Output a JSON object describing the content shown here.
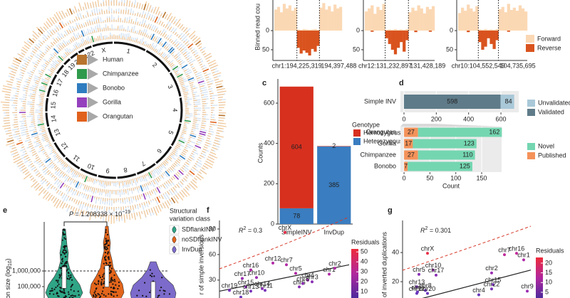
{
  "chart_data": [
    {
      "type": "circos",
      "legend": [
        "Human",
        "Chimpanzee",
        "Bonobo",
        "Gorilla",
        "Orangutan"
      ],
      "colors": [
        "#b8752f",
        "#2f9a4c",
        "#2e7cbf",
        "#9540bd",
        "#e0611c"
      ],
      "chromosomes": [
        "1",
        "2",
        "3",
        "4",
        "5",
        "6",
        "7",
        "8",
        "9",
        "10",
        "11",
        "12",
        "13",
        "14",
        "15",
        "16",
        "17",
        "18",
        "19",
        "20",
        "21",
        "22",
        "X"
      ]
    },
    {
      "type": "bar",
      "ylabel": "Binned read cou",
      "ylim": [
        -78,
        80
      ],
      "yticks": [
        0,
        {
          "value": -50,
          "label": "50"
        }
      ],
      "legend": [
        "Forward",
        "Reverse"
      ],
      "colors": [
        "#fbd8b4",
        "#d9531e"
      ],
      "panels": [
        {
          "start": "chr1:194,225,319",
          "end": "194,397,488",
          "forward": [
            55,
            62,
            48,
            70,
            58,
            66,
            52,
            60,
            3,
            2,
            4,
            3,
            2,
            3,
            4,
            2,
            60,
            72,
            55,
            64,
            50,
            68,
            58,
            62
          ],
          "reverse": [
            0,
            0,
            0,
            0,
            0,
            0,
            0,
            0,
            -45,
            -60,
            -52,
            -58,
            -65,
            -48,
            -55,
            -40,
            0,
            0,
            0,
            0,
            0,
            0,
            0,
            0
          ]
        },
        {
          "start": "chr12:131,232,897",
          "end": "131,428,189",
          "forward": [
            50,
            58,
            66,
            44,
            62,
            54,
            70,
            2,
            3,
            2,
            4,
            2,
            3,
            2,
            4,
            48,
            60,
            52,
            66,
            58,
            45,
            62,
            56,
            64
          ],
          "reverse": [
            0,
            0,
            -3,
            0,
            0,
            0,
            0,
            -20,
            -35,
            -50,
            -62,
            -45,
            -30,
            -55,
            -25,
            0,
            0,
            -4,
            0,
            0,
            0,
            0,
            -3,
            0
          ]
        },
        {
          "start": "chr10:104,552,549",
          "end": "104,735,695",
          "forward": [
            46,
            60,
            52,
            68,
            58,
            50,
            64,
            3,
            2,
            4,
            2,
            3,
            2,
            4,
            56,
            62,
            48,
            70,
            54,
            60,
            52,
            66,
            58,
            50
          ],
          "reverse": [
            0,
            0,
            0,
            -4,
            0,
            0,
            0,
            -30,
            -50,
            -42,
            -20,
            -35,
            -48,
            -25,
            0,
            0,
            0,
            -3,
            0,
            0,
            0,
            0,
            0,
            0
          ]
        }
      ]
    },
    {
      "type": "stacked_bar",
      "panel": "c",
      "ylabel": "Counts",
      "legend_title": "Genotype",
      "categories": [
        "SimpleINV",
        "InvDup"
      ],
      "series": [
        {
          "name": "Homozygous",
          "color": "#d7301f",
          "values": [
            604,
            2
          ]
        },
        {
          "name": "Heterozygous",
          "color": "#3a7dc0",
          "values": [
            78,
            385
          ]
        }
      ],
      "ylim": [
        0,
        720
      ],
      "yticks": [
        0,
        200,
        400,
        600
      ]
    },
    {
      "type": "stacked_barh",
      "panel": "d",
      "top": {
        "categories": [
          "Simple INV"
        ],
        "series": [
          {
            "name": "Unvalidated",
            "color": "#a9c8d8",
            "values": [
              84
            ]
          },
          {
            "name": "Validated",
            "color": "#5f7b89",
            "values": [
              598
            ]
          }
        ],
        "xlim": [
          -22,
          710
        ],
        "xticks": [
          0,
          200,
          400,
          600
        ]
      },
      "bottom": {
        "categories": [
          "Orangutan",
          "Gorilla",
          "Chimpanzee",
          "Bonobo"
        ],
        "series": [
          {
            "name": "Novel",
            "color": "#74d6b1",
            "values": [
              162,
              123,
              110,
              125
            ]
          },
          {
            "name": "Published",
            "color": "#f4925a",
            "values": [
              27,
              17,
              27,
              7
            ]
          }
        ],
        "xlim": [
          -7,
          188.5
        ],
        "xticks": [
          0,
          50,
          100,
          150
        ],
        "xlabel": "Count"
      }
    },
    {
      "type": "violin",
      "panel": "e",
      "annotation": {
        "p": "P",
        "text": " = 1.208338 × 10",
        "exp": "−19"
      },
      "ylabel": {
        "text": "sion size (log",
        "sub": "10",
        "end": ")"
      },
      "log_scale": true,
      "ylim": [
        18738,
        1700000000
      ],
      "yticks": [
        {
          "value": 1000000,
          "label": "1,000,000"
        },
        {
          "value": 100000,
          "label": "100,000"
        }
      ],
      "legend_title": [
        "Structural",
        "variation class"
      ],
      "series": [
        {
          "name": "SDflankINV",
          "color": "#2fa586"
        },
        {
          "name": "noSDflankINV",
          "color": "#e2651b"
        },
        {
          "name": "InvDup",
          "color": "#7d6bcb"
        }
      ]
    },
    {
      "type": "scatter",
      "panel": "f",
      "annotation": {
        "r": "R",
        "sup": "2",
        "text": " = 0.3"
      },
      "ylabel": "r of simple inversions",
      "ylim": [
        9,
        100
      ],
      "yticks": [
        30,
        60,
        90
      ],
      "labels": [
        "chrX",
        "chr16",
        "chr12",
        "chr7",
        "chr17",
        "chr10",
        "chr5",
        "chr1",
        "chr2",
        "chr3",
        "chr19",
        "chr15",
        "chr14",
        "chr13",
        "chr11",
        "chr6",
        "chr4",
        "chr8",
        "chr18"
      ],
      "values": [
        86,
        42,
        50,
        48,
        32,
        33,
        38,
        37,
        44,
        28,
        18,
        22,
        20,
        17,
        18,
        22,
        30,
        26,
        10
      ],
      "point_colors": [
        "#e8304a",
        "#b02aa5",
        "#b02aa5",
        "#b02aa5",
        "#9a2db0",
        "#9a2db0",
        "#b02aa5",
        "#b02aa5",
        "#b02aa5",
        "#8a30b4",
        "#7a33b8",
        "#8a30b4",
        "#8a30b4",
        "#7a33b8",
        "#7a33b8",
        "#8a30b4",
        "#9a2db0",
        "#8a30b4",
        "#6b36bb"
      ],
      "colorbar": {
        "title": "Residuals",
        "ticks": [
          10,
          20,
          30,
          40,
          50
        ],
        "lim": [
          3,
          53
        ]
      }
    },
    {
      "type": "scatter",
      "panel": "g",
      "annotation": {
        "r": "R",
        "sup": "2",
        "text": " = 0.301"
      },
      "ylabel": "of inverted duplications",
      "ylim": [
        8.8,
        62
      ],
      "yticks": [
        20,
        40
      ],
      "labels": [
        "chrX",
        "chr7",
        "chr16",
        "chr1",
        "chr10",
        "chr5",
        "chr17",
        "chr2",
        "chr15",
        "chr22",
        "chr13",
        "chr8",
        "chr6",
        "chr4",
        "chr9",
        "chr12",
        "chr20"
      ],
      "values": [
        39.5,
        38.5,
        39.5,
        35,
        28,
        25,
        24.5,
        26,
        18,
        15,
        16.5,
        14,
        13,
        11,
        13.5,
        12,
        12
      ],
      "point_colors": [
        "#e8304a",
        "#c02a9a",
        "#c02a9a",
        "#b02aa5",
        "#9a2db0",
        "#8a30b4",
        "#8a30b4",
        "#9a2db0",
        "#7a33b8",
        "#7a33b8",
        "#7a33b8",
        "#6b36bb",
        "#6b36bb",
        "#6b36bb",
        "#9a2db0",
        "#6b36bb",
        "#6b36bb"
      ],
      "colorbar": {
        "title": "Residuals",
        "ticks": [
          5,
          10,
          15,
          20
        ],
        "lim": [
          1.7,
          22.9
        ]
      }
    }
  ]
}
